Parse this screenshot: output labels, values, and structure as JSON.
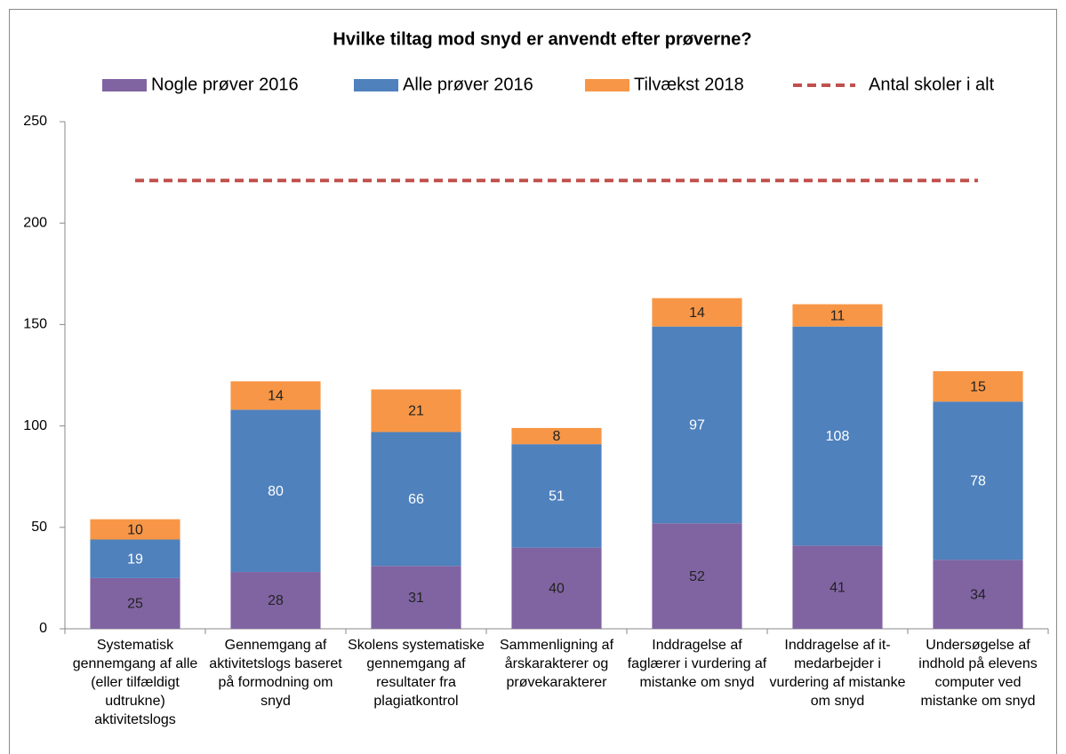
{
  "chart_data": {
    "type": "bar",
    "stacked": true,
    "title": "Hvilke tiltag mod snyd er anvendt efter prøverne?",
    "categories": [
      "Systematisk gennemgang af alle (eller tilfældigt udtrukne) aktivitetslogs",
      "Gennemgang af aktivitetslogs baseret på formodning om snyd",
      "Skolens systematiske gennemgang af resultater fra plagiatkontrol",
      "Sammenligning af årskarakterer og prøvekarakterer",
      "Inddragelse af faglærer i vurdering af mistanke om snyd",
      "Inddragelse af it-medarbejder i vurdering af mistanke om snyd",
      "Undersøgelse af indhold på elevens computer ved mistanke om snyd"
    ],
    "series": [
      {
        "name": "Nogle prøver 2016",
        "color": "#8064a2",
        "values": [
          25,
          28,
          31,
          40,
          52,
          41,
          34
        ]
      },
      {
        "name": "Alle prøver 2016",
        "color": "#4f81bd",
        "values": [
          19,
          80,
          66,
          51,
          97,
          108,
          78
        ]
      },
      {
        "name": "Tilvækst 2018",
        "color": "#f79646",
        "values": [
          10,
          14,
          21,
          8,
          14,
          11,
          15
        ]
      },
      {
        "name": "Antal skoler i alt",
        "color": "#c0504d",
        "type": "line",
        "dashed": true,
        "values": [
          221,
          221,
          221,
          221,
          221,
          221,
          221
        ]
      }
    ],
    "ylim": [
      0,
      250
    ],
    "yticks": [
      0,
      50,
      100,
      150,
      200,
      250
    ],
    "grid": false,
    "legend": "top"
  }
}
